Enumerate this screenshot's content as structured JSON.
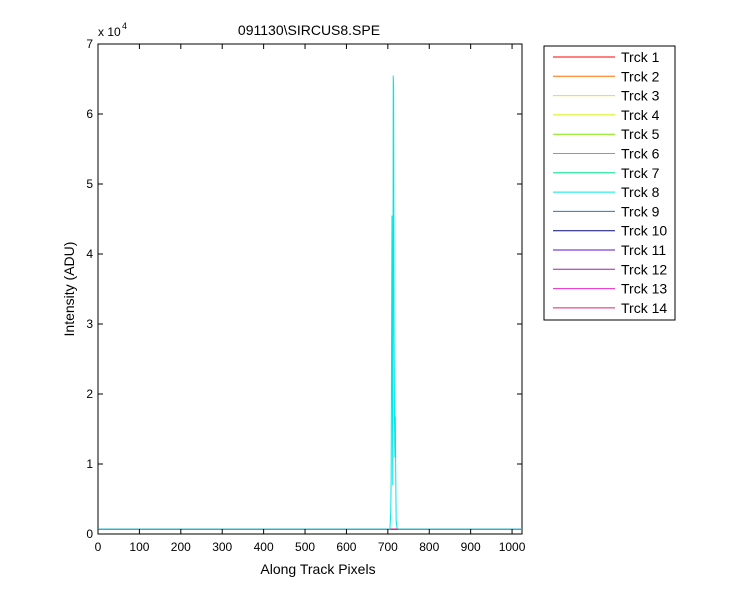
{
  "chart_data": {
    "type": "line",
    "title": "091130\\SIRCUS8.SPE",
    "xlabel": "Along Track Pixels",
    "ylabel": "Intensity (ADU)",
    "y_exponent_label": "x 10",
    "y_exponent_power": "4",
    "xlim": [
      0,
      1024
    ],
    "ylim": [
      0,
      70000
    ],
    "x_ticks": [
      0,
      100,
      200,
      300,
      400,
      500,
      600,
      700,
      800,
      900,
      1000
    ],
    "y_ticks": [
      0,
      10000,
      20000,
      30000,
      40000,
      50000,
      60000,
      70000
    ],
    "y_tick_labels": [
      "0",
      "1",
      "2",
      "3",
      "4",
      "5",
      "6",
      "7"
    ],
    "grid": false,
    "legend_position": "outside-right-top",
    "baseline_level": 700,
    "series": [
      {
        "name": "Trck 1",
        "color": "#ff0000"
      },
      {
        "name": "Trck 2",
        "color": "#ff6e00"
      },
      {
        "name": "Trck 3",
        "color": "#ffdc00"
      },
      {
        "name": "Trck 4",
        "color": "#d2f000"
      },
      {
        "name": "Trck 5",
        "color": "#82e600"
      },
      {
        "name": "Trck 6",
        "color": "#28e628"
      },
      {
        "name": "Trck 7",
        "color": "#00e68c"
      },
      {
        "name": "Trck 8",
        "color": "#00e6e6",
        "x": [
          0,
          705,
          707,
          708,
          709,
          710,
          711,
          712,
          713,
          714,
          715,
          716,
          717,
          718,
          719,
          720,
          722,
          725,
          1024
        ],
        "y": [
          700,
          700,
          3000,
          8000,
          28000,
          45500,
          20000,
          7000,
          65500,
          64000,
          30000,
          17000,
          11000,
          16800,
          9000,
          2000,
          900,
          700,
          700
        ]
      },
      {
        "name": "Trck 9",
        "color": "#1e78c8"
      },
      {
        "name": "Trck 10",
        "color": "#0a0a78"
      },
      {
        "name": "Trck 11",
        "color": "#5a14c8"
      },
      {
        "name": "Trck 12",
        "color": "#a01eb4"
      },
      {
        "name": "Trck 13",
        "color": "#e628c8"
      },
      {
        "name": "Trck 14",
        "color": "#e61e64"
      }
    ]
  }
}
